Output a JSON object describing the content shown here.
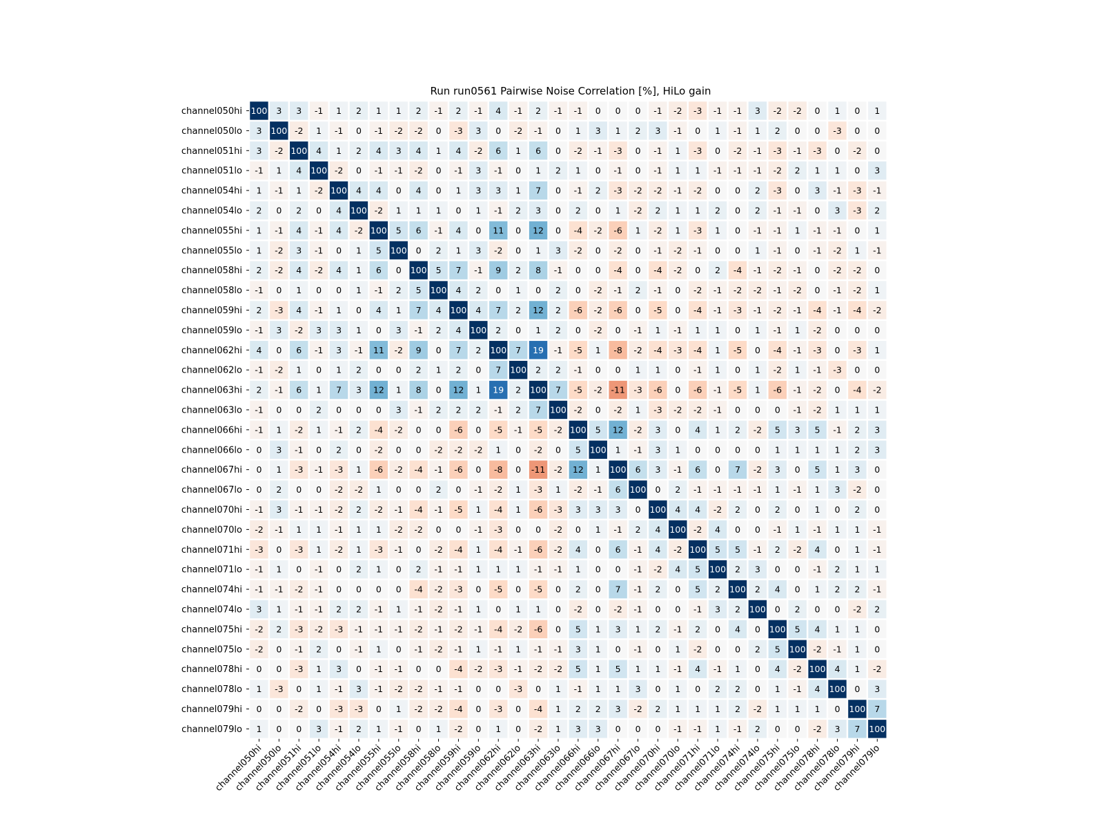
{
  "chart_data": {
    "type": "heatmap",
    "title": "Run run0561 Pairwise Noise Correlation [%], HiLo gain",
    "xlabel": "",
    "ylabel": "",
    "labels": [
      "channel050hi",
      "channel050lo",
      "channel051hi",
      "channel051lo",
      "channel054hi",
      "channel054lo",
      "channel055hi",
      "channel055lo",
      "channel058hi",
      "channel058lo",
      "channel059hi",
      "channel059lo",
      "channel062hi",
      "channel062lo",
      "channel063hi",
      "channel063lo",
      "channel066hi",
      "channel066lo",
      "channel067hi",
      "channel067lo",
      "channel070hi",
      "channel070lo",
      "channel071hi",
      "channel071lo",
      "channel074hi",
      "channel074lo",
      "channel075hi",
      "channel075lo",
      "channel078hi",
      "channel078lo",
      "channel079hi",
      "channel079lo"
    ],
    "color_range": [
      -100,
      100
    ],
    "colormap": "RdBu (diverging, red negative, blue positive)",
    "matrix": [
      [
        100,
        3,
        3,
        -1,
        1,
        2,
        1,
        1,
        2,
        -1,
        2,
        -1,
        4,
        -1,
        2,
        -1,
        -1,
        0,
        0,
        0,
        -1,
        -2,
        -3,
        -1,
        -1,
        3,
        -2,
        -2,
        0,
        1,
        0,
        1
      ],
      [
        3,
        100,
        -2,
        1,
        -1,
        0,
        -1,
        -2,
        -2,
        0,
        -3,
        3,
        0,
        -2,
        -1,
        0,
        1,
        3,
        1,
        2,
        3,
        -1,
        0,
        1,
        -1,
        1,
        2,
        0,
        0,
        -3,
        0,
        0
      ],
      [
        3,
        -2,
        100,
        4,
        1,
        2,
        4,
        3,
        4,
        1,
        4,
        -2,
        6,
        1,
        6,
        0,
        -2,
        -1,
        -3,
        0,
        -1,
        1,
        -3,
        0,
        -2,
        -1,
        -3,
        -1,
        -3,
        0,
        -2,
        0
      ],
      [
        -1,
        1,
        4,
        100,
        -2,
        0,
        -1,
        -1,
        -2,
        0,
        -1,
        3,
        -1,
        0,
        1,
        2,
        1,
        0,
        -1,
        0,
        -1,
        1,
        1,
        -1,
        -1,
        -1,
        -2,
        2,
        1,
        1,
        0,
        3
      ],
      [
        1,
        -1,
        1,
        -2,
        100,
        4,
        4,
        0,
        4,
        0,
        1,
        3,
        3,
        1,
        7,
        0,
        -1,
        2,
        -3,
        -2,
        -2,
        -1,
        -2,
        0,
        0,
        2,
        -3,
        0,
        3,
        -1,
        -3,
        -1
      ],
      [
        2,
        0,
        2,
        0,
        4,
        100,
        -2,
        1,
        1,
        1,
        0,
        1,
        -1,
        2,
        3,
        0,
        2,
        0,
        1,
        -2,
        2,
        1,
        1,
        2,
        0,
        2,
        -1,
        -1,
        0,
        3,
        -3,
        2
      ],
      [
        1,
        -1,
        4,
        -1,
        4,
        -2,
        100,
        5,
        6,
        -1,
        4,
        0,
        11,
        0,
        12,
        0,
        -4,
        -2,
        -6,
        1,
        -2,
        1,
        -3,
        1,
        0,
        -1,
        -1,
        1,
        -1,
        -1,
        0,
        1
      ],
      [
        1,
        -2,
        3,
        -1,
        0,
        1,
        5,
        100,
        0,
        2,
        1,
        3,
        -2,
        0,
        1,
        3,
        -2,
        0,
        -2,
        0,
        -1,
        -2,
        -1,
        0,
        0,
        1,
        -1,
        0,
        -1,
        -2,
        1,
        -1
      ],
      [
        2,
        -2,
        4,
        -2,
        4,
        1,
        6,
        0,
        100,
        5,
        7,
        -1,
        9,
        2,
        8,
        -1,
        0,
        0,
        -4,
        0,
        -4,
        -2,
        0,
        2,
        -4,
        -1,
        -2,
        -1,
        0,
        -2,
        -2,
        0
      ],
      [
        -1,
        0,
        1,
        0,
        0,
        1,
        -1,
        2,
        5,
        100,
        4,
        2,
        0,
        1,
        0,
        2,
        0,
        -2,
        -1,
        2,
        -1,
        0,
        -2,
        -1,
        -2,
        -2,
        -1,
        -2,
        0,
        -1,
        -2,
        1
      ],
      [
        2,
        -3,
        4,
        -1,
        1,
        0,
        4,
        1,
        7,
        4,
        100,
        4,
        7,
        2,
        12,
        2,
        -6,
        -2,
        -6,
        0,
        -5,
        0,
        -4,
        -1,
        -3,
        -1,
        -2,
        -1,
        -4,
        -1,
        -4,
        -2
      ],
      [
        -1,
        3,
        -2,
        3,
        3,
        1,
        0,
        3,
        -1,
        2,
        4,
        100,
        2,
        0,
        1,
        2,
        0,
        -2,
        0,
        -1,
        1,
        -1,
        1,
        1,
        0,
        1,
        -1,
        1,
        -2,
        0,
        0,
        0
      ],
      [
        4,
        0,
        6,
        -1,
        3,
        -1,
        11,
        -2,
        9,
        0,
        7,
        2,
        100,
        7,
        19,
        -1,
        -5,
        1,
        -8,
        -2,
        -4,
        -3,
        -4,
        1,
        -5,
        0,
        -4,
        -1,
        -3,
        0,
        -3,
        1
      ],
      [
        -1,
        -2,
        1,
        0,
        1,
        2,
        0,
        0,
        2,
        1,
        2,
        0,
        7,
        100,
        2,
        2,
        -1,
        0,
        0,
        1,
        1,
        0,
        -1,
        1,
        0,
        1,
        -2,
        1,
        -1,
        -3,
        0,
        0
      ],
      [
        2,
        -1,
        6,
        1,
        7,
        3,
        12,
        1,
        8,
        0,
        12,
        1,
        19,
        2,
        100,
        7,
        -5,
        -2,
        -11,
        -3,
        -6,
        0,
        -6,
        -1,
        -5,
        1,
        -6,
        -1,
        -2,
        0,
        -4,
        -2
      ],
      [
        -1,
        0,
        0,
        2,
        0,
        0,
        0,
        3,
        -1,
        2,
        2,
        2,
        -1,
        2,
        7,
        100,
        -2,
        0,
        -2,
        1,
        -3,
        -2,
        -2,
        -1,
        0,
        0,
        0,
        -1,
        -2,
        1,
        1,
        1
      ],
      [
        -1,
        1,
        -2,
        1,
        -1,
        2,
        -4,
        -2,
        0,
        0,
        -6,
        0,
        -5,
        -1,
        -5,
        -2,
        100,
        5,
        12,
        -2,
        3,
        0,
        4,
        1,
        2,
        -2,
        5,
        3,
        5,
        -1,
        2,
        3
      ],
      [
        0,
        3,
        -1,
        0,
        2,
        0,
        -2,
        0,
        0,
        -2,
        -2,
        -2,
        1,
        0,
        -2,
        0,
        5,
        100,
        1,
        -1,
        3,
        1,
        0,
        0,
        0,
        0,
        1,
        1,
        1,
        1,
        2,
        3
      ],
      [
        0,
        1,
        -3,
        -1,
        -3,
        1,
        -6,
        -2,
        -4,
        -1,
        -6,
        0,
        -8,
        0,
        -11,
        -2,
        12,
        1,
        100,
        6,
        3,
        -1,
        6,
        0,
        7,
        -2,
        3,
        0,
        5,
        1,
        3,
        0
      ],
      [
        0,
        2,
        0,
        0,
        -2,
        -2,
        1,
        0,
        0,
        2,
        0,
        -1,
        -2,
        1,
        -3,
        1,
        -2,
        -1,
        6,
        100,
        0,
        2,
        -1,
        -1,
        -1,
        -1,
        1,
        -1,
        1,
        3,
        -2,
        0
      ],
      [
        -1,
        3,
        -1,
        -1,
        -2,
        2,
        -2,
        -1,
        -4,
        -1,
        -5,
        1,
        -4,
        1,
        -6,
        -3,
        3,
        3,
        3,
        0,
        100,
        4,
        4,
        -2,
        2,
        0,
        2,
        0,
        1,
        0,
        2,
        0
      ],
      [
        -2,
        -1,
        1,
        1,
        -1,
        1,
        1,
        -2,
        -2,
        0,
        0,
        -1,
        -3,
        0,
        0,
        -2,
        0,
        1,
        -1,
        2,
        4,
        100,
        -2,
        4,
        0,
        0,
        -1,
        1,
        -1,
        1,
        1,
        -1
      ],
      [
        -3,
        0,
        -3,
        1,
        -2,
        1,
        -3,
        -1,
        0,
        -2,
        -4,
        1,
        -4,
        -1,
        -6,
        -2,
        4,
        0,
        6,
        -1,
        4,
        -2,
        100,
        5,
        5,
        -1,
        2,
        -2,
        4,
        0,
        1,
        -1
      ],
      [
        -1,
        1,
        0,
        -1,
        0,
        2,
        1,
        0,
        2,
        -1,
        -1,
        1,
        1,
        1,
        -1,
        -1,
        1,
        0,
        0,
        -1,
        -2,
        4,
        5,
        100,
        2,
        3,
        0,
        0,
        -1,
        2,
        1,
        1
      ],
      [
        -1,
        -1,
        -2,
        -1,
        0,
        0,
        0,
        0,
        -4,
        -2,
        -3,
        0,
        -5,
        0,
        -5,
        0,
        2,
        0,
        7,
        -1,
        2,
        0,
        5,
        2,
        100,
        2,
        4,
        0,
        1,
        2,
        2,
        -1
      ],
      [
        3,
        1,
        -1,
        -1,
        2,
        2,
        -1,
        1,
        -1,
        -2,
        -1,
        1,
        0,
        1,
        1,
        0,
        -2,
        0,
        -2,
        -1,
        0,
        0,
        -1,
        3,
        2,
        100,
        0,
        2,
        0,
        0,
        -2,
        2
      ],
      [
        -2,
        2,
        -3,
        -2,
        -3,
        -1,
        -1,
        -1,
        -2,
        -1,
        -2,
        -1,
        -4,
        -2,
        -6,
        0,
        5,
        1,
        3,
        1,
        2,
        -1,
        2,
        0,
        4,
        0,
        100,
        5,
        4,
        1,
        1,
        0
      ],
      [
        -2,
        0,
        -1,
        2,
        0,
        -1,
        1,
        0,
        -1,
        -2,
        -1,
        1,
        -1,
        1,
        -1,
        -1,
        3,
        1,
        0,
        -1,
        0,
        1,
        -2,
        0,
        0,
        2,
        5,
        100,
        -2,
        -1,
        1,
        0
      ],
      [
        0,
        0,
        -3,
        1,
        3,
        0,
        -1,
        -1,
        0,
        0,
        -4,
        -2,
        -3,
        -1,
        -2,
        -2,
        5,
        1,
        5,
        1,
        1,
        -1,
        4,
        -1,
        1,
        0,
        4,
        -2,
        100,
        4,
        1,
        -2
      ],
      [
        1,
        -3,
        0,
        1,
        -1,
        3,
        -1,
        -2,
        -2,
        -1,
        -1,
        0,
        0,
        -3,
        0,
        1,
        -1,
        1,
        1,
        3,
        0,
        1,
        0,
        2,
        2,
        0,
        1,
        -1,
        4,
        100,
        0,
        3
      ],
      [
        0,
        0,
        -2,
        0,
        -3,
        -3,
        0,
        1,
        -2,
        -2,
        -4,
        0,
        -3,
        0,
        -4,
        1,
        2,
        2,
        3,
        -2,
        2,
        1,
        1,
        1,
        2,
        -2,
        1,
        1,
        1,
        0,
        100,
        7
      ],
      [
        1,
        0,
        0,
        3,
        -1,
        2,
        1,
        -1,
        0,
        1,
        -2,
        0,
        1,
        0,
        -2,
        1,
        3,
        3,
        0,
        0,
        0,
        -1,
        -1,
        1,
        -1,
        2,
        0,
        0,
        -2,
        3,
        7,
        100
      ]
    ],
    "grid": false,
    "legend": "none"
  }
}
